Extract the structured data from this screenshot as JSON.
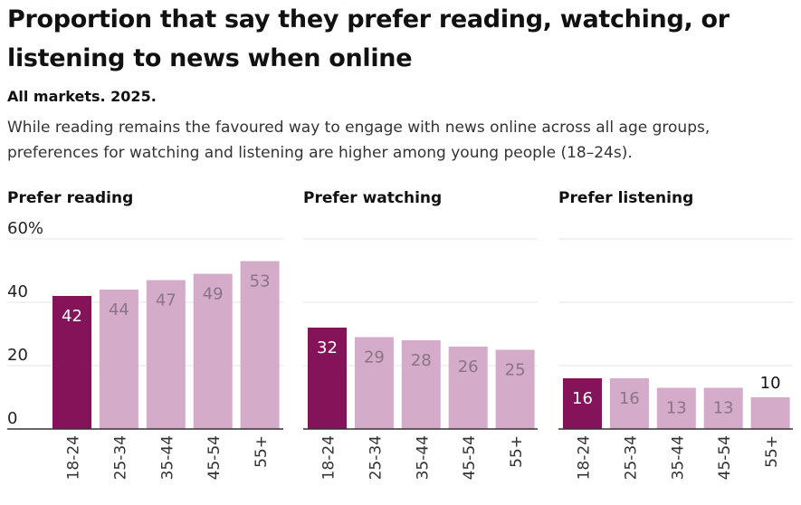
{
  "title": "Proportion that say they prefer reading, watching, or listening to news when online",
  "subtitle": "All markets. 2025.",
  "description": "While reading remains the favoured way to engage with news online across all age groups, preferences for watching and listening are higher among young people (18–24s).",
  "colors": {
    "highlight": "#84135a",
    "other": "#d4abc8",
    "label_on_highlight": "#ffffff",
    "label_on_other": "#8a7585",
    "gridline": "#e6e6e6",
    "axis": "#333333"
  },
  "chart_data": [
    {
      "type": "bar",
      "title": "Prefer reading",
      "categories": [
        "18-24",
        "25-34",
        "35-44",
        "45-54",
        "55+"
      ],
      "values": [
        42,
        44,
        47,
        49,
        53
      ],
      "ylim": [
        0,
        60
      ],
      "yticks": [
        "0",
        "20",
        "40",
        "60%"
      ],
      "grid": true
    },
    {
      "type": "bar",
      "title": "Prefer watching",
      "categories": [
        "18-24",
        "25-34",
        "35-44",
        "45-54",
        "55+"
      ],
      "values": [
        32,
        29,
        28,
        26,
        25
      ],
      "ylim": [
        0,
        60
      ],
      "grid": true
    },
    {
      "type": "bar",
      "title": "Prefer listening",
      "categories": [
        "18-24",
        "25-34",
        "35-44",
        "45-54",
        "55+"
      ],
      "values": [
        16,
        16,
        13,
        13,
        10
      ],
      "ylim": [
        0,
        60
      ],
      "grid": true
    }
  ]
}
